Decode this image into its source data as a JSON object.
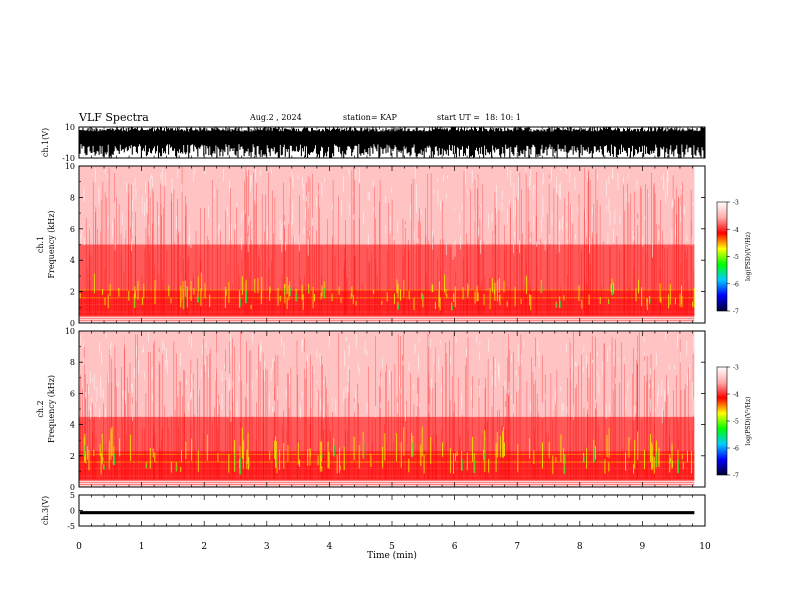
{
  "header": {
    "title": "VLF Spectra",
    "date": "Aug.2 , 2024",
    "station": "station= KAP",
    "start_ut": "start UT =  18: 10: 1"
  },
  "chart_data": [
    {
      "type": "line",
      "name": "ch1-waveform",
      "ylabel": "ch.1(V)",
      "ylim": [
        -10,
        10
      ],
      "yticks": [
        "10",
        "-10"
      ],
      "xlim": [
        0,
        10
      ]
    },
    {
      "type": "heatmap",
      "name": "ch1-spectrogram",
      "ylabel": "ch.1 Frequency (kHz)",
      "ylim": [
        0,
        10
      ],
      "yticks": [
        "0",
        "2",
        "4",
        "6",
        "8",
        "10"
      ],
      "xlim": [
        0,
        9.83
      ],
      "colorbar": {
        "label": "log(PSD)(V²/Hz)",
        "range": [
          -7,
          -3
        ],
        "ticks": [
          "-3",
          "-4",
          "-5",
          "-6",
          "-7"
        ],
        "colors": [
          "#000033",
          "#0000ff",
          "#00ccff",
          "#00ff00",
          "#ffff00",
          "#ff0000",
          "#ffaaaa",
          "#ffffff"
        ]
      },
      "bands": [
        {
          "from": 0.4,
          "to": 1.2,
          "level": "strong"
        },
        {
          "from": 1.2,
          "to": 2.1,
          "level": "strong"
        },
        {
          "from": 2.1,
          "to": 5.0,
          "level": "medium"
        },
        {
          "from": 5.0,
          "to": 10.0,
          "level": "weak"
        }
      ]
    },
    {
      "type": "heatmap",
      "name": "ch2-spectrogram",
      "ylabel": "ch.2 Frequency (kHz)",
      "ylim": [
        0,
        10
      ],
      "yticks": [
        "0",
        "2",
        "4",
        "6",
        "8",
        "10"
      ],
      "xlim": [
        0,
        9.83
      ],
      "colorbar": {
        "label": "log(PSD)(V²/Hz)",
        "range": [
          -7,
          -3
        ],
        "ticks": [
          "-3",
          "-4",
          "-5",
          "-6",
          "-7"
        ],
        "colors": [
          "#000033",
          "#0000ff",
          "#00ccff",
          "#00ff00",
          "#ffff00",
          "#ff0000",
          "#ffaaaa",
          "#ffffff"
        ]
      },
      "bands": [
        {
          "from": 0.4,
          "to": 1.2,
          "level": "strong"
        },
        {
          "from": 1.2,
          "to": 2.3,
          "level": "strong"
        },
        {
          "from": 2.3,
          "to": 4.5,
          "level": "medium"
        },
        {
          "from": 4.5,
          "to": 10.0,
          "level": "weak"
        }
      ]
    },
    {
      "type": "line",
      "name": "ch3-waveform",
      "ylabel": "ch.3(V)",
      "ylim": [
        -5,
        5
      ],
      "yticks": [
        "5",
        "0",
        "-5"
      ],
      "level": [
        -1.2,
        -0.2
      ],
      "xlim": [
        0,
        9.83
      ]
    }
  ],
  "xaxis": {
    "label": "Time (min)",
    "range": [
      0,
      10
    ],
    "ticks": [
      "0",
      "1",
      "2",
      "3",
      "4",
      "5",
      "6",
      "7",
      "8",
      "9",
      "10"
    ]
  }
}
